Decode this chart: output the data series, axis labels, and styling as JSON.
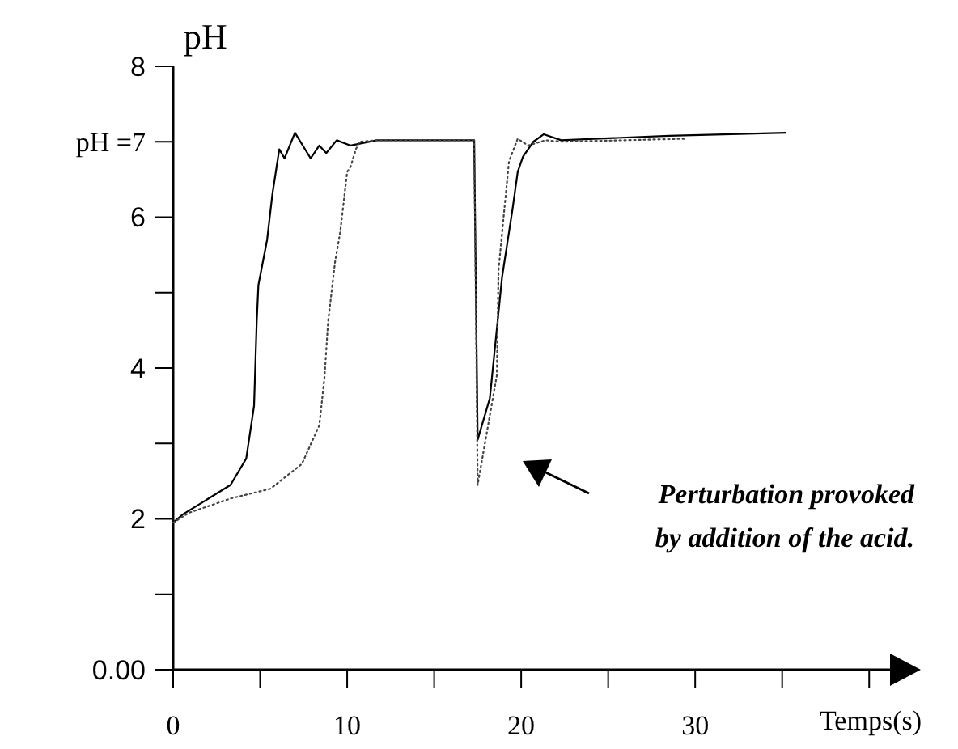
{
  "chart_data": {
    "type": "line",
    "ylabel": "pH",
    "xlabel": "Temps(s)",
    "xlim": [
      0,
      42.5
    ],
    "ylim": [
      0,
      8
    ],
    "xticks": [
      0,
      {
        "value": 5,
        "label": null
      },
      10,
      {
        "value": 15,
        "label": null
      },
      20,
      {
        "value": 25,
        "label": null
      },
      30,
      {
        "value": 35,
        "label": null
      },
      {
        "value": 40,
        "label": null
      }
    ],
    "yticks": [
      {
        "value": 0,
        "label": "0.00"
      },
      {
        "value": 1,
        "label": null
      },
      2,
      {
        "value": 3,
        "label": null
      },
      4,
      {
        "value": 5,
        "label": null
      },
      6,
      {
        "value": 7,
        "label": "pH  =7"
      },
      8
    ],
    "grid": false,
    "marker": "none",
    "series": [
      {
        "color": "#000000",
        "line_style": "solid",
        "x": [
          0,
          0.56,
          3.3,
          4.2,
          4.65,
          4.8,
          4.9,
          5.4,
          5.7,
          6.1,
          6.4,
          7.0,
          7.9,
          8.4,
          8.8,
          9.4,
          10.2,
          11.7,
          17.3,
          17.5,
          18.2,
          18.9,
          19.5,
          19.8,
          20.1,
          20.7,
          21.3,
          22.3,
          28.5,
          35.2
        ],
        "values": [
          1.95,
          2.06,
          2.45,
          2.8,
          3.5,
          4.6,
          5.1,
          5.7,
          6.3,
          6.9,
          6.78,
          7.12,
          6.78,
          6.95,
          6.85,
          7.02,
          6.95,
          7.02,
          7.02,
          3.05,
          3.6,
          5.2,
          6.1,
          6.6,
          6.8,
          7.0,
          7.1,
          7.02,
          7.08,
          7.12
        ]
      },
      {
        "color": "#444444",
        "line_style": "dotted",
        "x": [
          0,
          0.9,
          3.3,
          5.6,
          7.4,
          8.4,
          8.7,
          8.9,
          9.3,
          9.6,
          10.0,
          10.2,
          10.5,
          10.7,
          11.7,
          17.3,
          17.5,
          18.6,
          18.7,
          19.3,
          19.8,
          20.4,
          21.4,
          22.3,
          29.4
        ],
        "values": [
          1.95,
          2.08,
          2.27,
          2.4,
          2.73,
          3.24,
          3.88,
          4.6,
          5.4,
          5.8,
          6.6,
          6.67,
          6.9,
          7.0,
          7.02,
          7.02,
          2.45,
          3.9,
          5.3,
          6.74,
          7.04,
          6.95,
          7.02,
          7.0,
          7.04
        ]
      }
    ],
    "annotations": [
      "Perturbation provoked\nby addition of the  acid."
    ]
  }
}
